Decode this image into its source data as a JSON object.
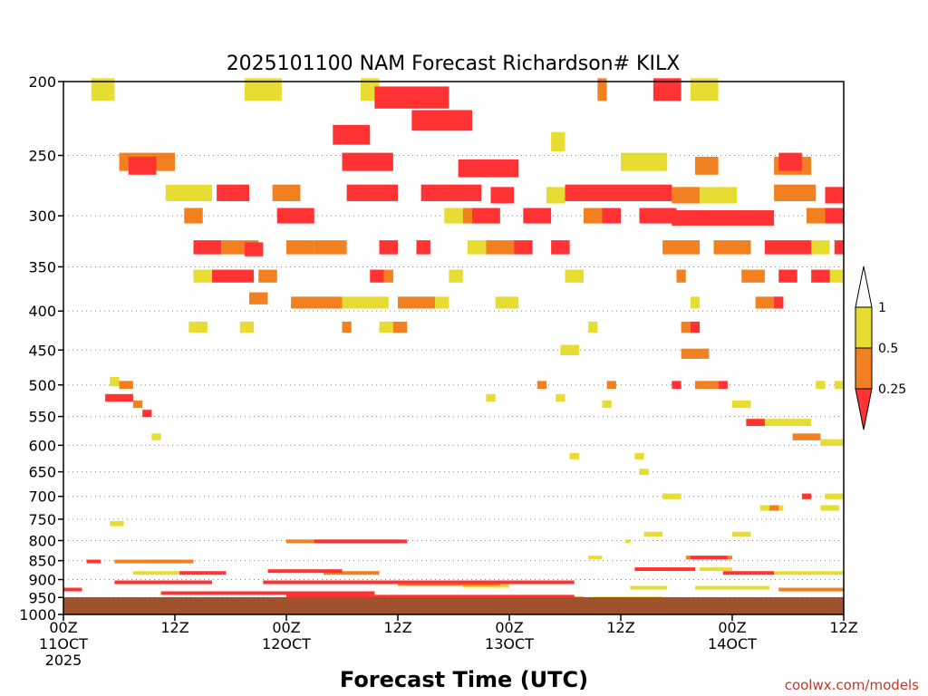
{
  "chart_data": {
    "type": "heatmap",
    "title": "2025101100 NAM Forecast Richardson# KILX",
    "xlabel": "Forecast Time (UTC)",
    "ylabel": "",
    "credit": "coolwx.com/models",
    "y_axis": {
      "scale": "pressure (reversed)",
      "ylim": [
        1000,
        200
      ],
      "ticks": [
        "200",
        "250",
        "300",
        "350",
        "400",
        "450",
        "500",
        "550",
        "600",
        "650",
        "700",
        "750",
        "800",
        "850",
        "900",
        "950",
        "1000"
      ]
    },
    "x_axis": {
      "range_hours": [
        0,
        84
      ],
      "ticks": [
        {
          "hour": 0,
          "line1": "00Z",
          "line2": "11OCT",
          "line3": "2025"
        },
        {
          "hour": 12,
          "line1": "12Z",
          "line2": "",
          "line3": ""
        },
        {
          "hour": 24,
          "line1": "00Z",
          "line2": "12OCT",
          "line3": ""
        },
        {
          "hour": 36,
          "line1": "12Z",
          "line2": "",
          "line3": ""
        },
        {
          "hour": 48,
          "line1": "00Z",
          "line2": "13OCT",
          "line3": ""
        },
        {
          "hour": 60,
          "line1": "12Z",
          "line2": "",
          "line3": ""
        },
        {
          "hour": 72,
          "line1": "00Z",
          "line2": "14OCT",
          "line3": ""
        },
        {
          "hour": 84,
          "line1": "12Z",
          "line2": "",
          "line3": ""
        }
      ]
    },
    "grid": "dotted horizontal lines at pressure ticks",
    "ground_color": "#a0522d",
    "colorbar": {
      "levels": [
        "0.25",
        "0.5",
        "1"
      ],
      "colors": {
        "lt_025": "#ff3333",
        "025_05": "#f08020",
        "05_1": "#e6dc32"
      }
    },
    "bands": [
      {
        "bin": "red",
        "p": 210,
        "h0": 33.5,
        "h1": 41.5
      },
      {
        "bin": "red",
        "p": 225,
        "h0": 37.5,
        "h1": 44.0
      },
      {
        "bin": "red",
        "p": 235,
        "h0": 29.0,
        "h1": 33.0
      },
      {
        "bin": "yellow",
        "p": 205,
        "h0": 3.0,
        "h1": 5.5
      },
      {
        "bin": "yellow",
        "p": 205,
        "h0": 19.5,
        "h1": 23.5
      },
      {
        "bin": "yellow",
        "p": 205,
        "h0": 32.0,
        "h1": 34.0
      },
      {
        "bin": "orange",
        "p": 205,
        "h0": 57.5,
        "h1": 58.5
      },
      {
        "bin": "red",
        "p": 205,
        "h0": 63.5,
        "h1": 66.5
      },
      {
        "bin": "yellow",
        "p": 205,
        "h0": 67.5,
        "h1": 70.5
      },
      {
        "bin": "yellow",
        "p": 240,
        "h0": 52.5,
        "h1": 54.0
      },
      {
        "bin": "orange",
        "p": 255,
        "h0": 6.0,
        "h1": 12.0
      },
      {
        "bin": "red",
        "p": 258,
        "h0": 7.0,
        "h1": 10.0
      },
      {
        "bin": "red",
        "p": 255,
        "h0": 30.0,
        "h1": 35.5
      },
      {
        "bin": "red",
        "p": 260,
        "h0": 42.5,
        "h1": 49.0
      },
      {
        "bin": "yellow",
        "p": 255,
        "h0": 60.0,
        "h1": 65.0
      },
      {
        "bin": "orange",
        "p": 258,
        "h0": 68.0,
        "h1": 70.5
      },
      {
        "bin": "orange",
        "p": 258,
        "h0": 76.5,
        "h1": 80.5
      },
      {
        "bin": "red",
        "p": 255,
        "h0": 77.0,
        "h1": 79.5
      },
      {
        "bin": "yellow",
        "p": 280,
        "h0": 11.0,
        "h1": 16.0
      },
      {
        "bin": "red",
        "p": 280,
        "h0": 16.5,
        "h1": 20.0
      },
      {
        "bin": "orange",
        "p": 280,
        "h0": 22.5,
        "h1": 25.5
      },
      {
        "bin": "red",
        "p": 280,
        "h0": 30.5,
        "h1": 36.0
      },
      {
        "bin": "red",
        "p": 280,
        "h0": 38.5,
        "h1": 45.0
      },
      {
        "bin": "red",
        "p": 282,
        "h0": 46.0,
        "h1": 48.5
      },
      {
        "bin": "yellow",
        "p": 282,
        "h0": 52.0,
        "h1": 54.0
      },
      {
        "bin": "red",
        "p": 280,
        "h0": 54.0,
        "h1": 60.0
      },
      {
        "bin": "red",
        "p": 280,
        "h0": 60.0,
        "h1": 65.5
      },
      {
        "bin": "orange",
        "p": 282,
        "h0": 65.5,
        "h1": 68.5
      },
      {
        "bin": "yellow",
        "p": 282,
        "h0": 68.5,
        "h1": 72.5
      },
      {
        "bin": "orange",
        "p": 280,
        "h0": 76.5,
        "h1": 81.0
      },
      {
        "bin": "red",
        "p": 282,
        "h0": 82.0,
        "h1": 84.0
      },
      {
        "bin": "orange",
        "p": 300,
        "h0": 13.0,
        "h1": 15.0
      },
      {
        "bin": "red",
        "p": 300,
        "h0": 23.0,
        "h1": 27.0
      },
      {
        "bin": "orange",
        "p": 300,
        "h0": 43.0,
        "h1": 47.0
      },
      {
        "bin": "red",
        "p": 300,
        "h0": 44.0,
        "h1": 47.0
      },
      {
        "bin": "red",
        "p": 300,
        "h0": 49.5,
        "h1": 52.5
      },
      {
        "bin": "orange",
        "p": 300,
        "h0": 56.0,
        "h1": 58.0
      },
      {
        "bin": "red",
        "p": 300,
        "h0": 58.0,
        "h1": 60.0
      },
      {
        "bin": "red",
        "p": 300,
        "h0": 62.0,
        "h1": 66.0
      },
      {
        "bin": "red",
        "p": 302,
        "h0": 65.5,
        "h1": 76.5
      },
      {
        "bin": "orange",
        "p": 300,
        "h0": 80.0,
        "h1": 82.0
      },
      {
        "bin": "red",
        "p": 300,
        "h0": 82.0,
        "h1": 84.0
      },
      {
        "bin": "yellow",
        "p": 300,
        "h0": 41.0,
        "h1": 43.0
      },
      {
        "bin": "red",
        "p": 330,
        "h0": 14.0,
        "h1": 17.0
      },
      {
        "bin": "orange",
        "p": 330,
        "h0": 17.0,
        "h1": 21.0
      },
      {
        "bin": "red",
        "p": 332,
        "h0": 19.5,
        "h1": 21.5
      },
      {
        "bin": "orange",
        "p": 330,
        "h0": 24.0,
        "h1": 27.0
      },
      {
        "bin": "orange",
        "p": 330,
        "h0": 27.0,
        "h1": 30.5
      },
      {
        "bin": "red",
        "p": 330,
        "h0": 34.0,
        "h1": 36.0
      },
      {
        "bin": "red",
        "p": 330,
        "h0": 38.0,
        "h1": 39.5
      },
      {
        "bin": "orange",
        "p": 330,
        "h0": 45.5,
        "h1": 48.5
      },
      {
        "bin": "red",
        "p": 330,
        "h0": 48.5,
        "h1": 50.5
      },
      {
        "bin": "red",
        "p": 330,
        "h0": 52.5,
        "h1": 54.5
      },
      {
        "bin": "yellow",
        "p": 330,
        "h0": 43.5,
        "h1": 45.5
      },
      {
        "bin": "orange",
        "p": 330,
        "h0": 64.5,
        "h1": 68.5
      },
      {
        "bin": "orange",
        "p": 330,
        "h0": 70.0,
        "h1": 74.0
      },
      {
        "bin": "red",
        "p": 330,
        "h0": 75.5,
        "h1": 80.5
      },
      {
        "bin": "red",
        "p": 330,
        "h0": 83.0,
        "h1": 84.0
      },
      {
        "bin": "yellow",
        "p": 330,
        "h0": 80.5,
        "h1": 82.5
      },
      {
        "bin": "red",
        "p": 360,
        "h0": 16.0,
        "h1": 20.5
      },
      {
        "bin": "orange",
        "p": 360,
        "h0": 21.0,
        "h1": 23.0
      },
      {
        "bin": "yellow",
        "p": 360,
        "h0": 14.0,
        "h1": 16.0
      },
      {
        "bin": "red",
        "p": 360,
        "h0": 33.0,
        "h1": 34.5
      },
      {
        "bin": "orange",
        "p": 360,
        "h0": 34.5,
        "h1": 35.5
      },
      {
        "bin": "yellow",
        "p": 360,
        "h0": 41.5,
        "h1": 43.0
      },
      {
        "bin": "yellow",
        "p": 360,
        "h0": 54.0,
        "h1": 56.0
      },
      {
        "bin": "orange",
        "p": 360,
        "h0": 66.0,
        "h1": 67.0
      },
      {
        "bin": "orange",
        "p": 360,
        "h0": 73.0,
        "h1": 75.5
      },
      {
        "bin": "red",
        "p": 360,
        "h0": 77.0,
        "h1": 79.0
      },
      {
        "bin": "red",
        "p": 360,
        "h0": 80.5,
        "h1": 82.5
      },
      {
        "bin": "yellow",
        "p": 360,
        "h0": 82.5,
        "h1": 84.0
      },
      {
        "bin": "orange",
        "p": 385,
        "h0": 20.0,
        "h1": 22.0
      },
      {
        "bin": "orange",
        "p": 390,
        "h0": 24.5,
        "h1": 30.0
      },
      {
        "bin": "yellow",
        "p": 390,
        "h0": 30.0,
        "h1": 35.0
      },
      {
        "bin": "orange",
        "p": 390,
        "h0": 36.0,
        "h1": 40.0
      },
      {
        "bin": "yellow",
        "p": 390,
        "h0": 40.0,
        "h1": 41.5
      },
      {
        "bin": "yellow",
        "p": 390,
        "h0": 46.5,
        "h1": 49.0
      },
      {
        "bin": "orange",
        "p": 390,
        "h0": 74.5,
        "h1": 77.5
      },
      {
        "bin": "red",
        "p": 390,
        "h0": 76.5,
        "h1": 77.5
      },
      {
        "bin": "yellow",
        "p": 390,
        "h0": 67.5,
        "h1": 68.5
      },
      {
        "bin": "yellow",
        "p": 420,
        "h0": 13.5,
        "h1": 15.5
      },
      {
        "bin": "yellow",
        "p": 420,
        "h0": 19.0,
        "h1": 20.5
      },
      {
        "bin": "orange",
        "p": 420,
        "h0": 30.0,
        "h1": 31.0
      },
      {
        "bin": "yellow",
        "p": 420,
        "h0": 34.0,
        "h1": 36.0
      },
      {
        "bin": "orange",
        "p": 420,
        "h0": 35.5,
        "h1": 37.0
      },
      {
        "bin": "red",
        "p": 420,
        "h0": 67.5,
        "h1": 68.5
      },
      {
        "bin": "orange",
        "p": 420,
        "h0": 66.5,
        "h1": 67.5
      },
      {
        "bin": "yellow",
        "p": 420,
        "h0": 56.5,
        "h1": 57.5
      },
      {
        "bin": "orange",
        "p": 455,
        "h0": 66.5,
        "h1": 69.5
      },
      {
        "bin": "yellow",
        "p": 450,
        "h0": 53.5,
        "h1": 55.5
      },
      {
        "bin": "orange",
        "p": 500,
        "h0": 6.0,
        "h1": 7.5
      },
      {
        "bin": "yellow",
        "p": 495,
        "h0": 5.0,
        "h1": 6.0
      },
      {
        "bin": "red",
        "p": 520,
        "h0": 4.5,
        "h1": 7.5
      },
      {
        "bin": "orange",
        "p": 530,
        "h0": 7.5,
        "h1": 8.5
      },
      {
        "bin": "red",
        "p": 545,
        "h0": 8.5,
        "h1": 9.5
      },
      {
        "bin": "yellow",
        "p": 585,
        "h0": 9.5,
        "h1": 10.5
      },
      {
        "bin": "orange",
        "p": 500,
        "h0": 51.0,
        "h1": 52.0
      },
      {
        "bin": "orange",
        "p": 500,
        "h0": 58.5,
        "h1": 59.5
      },
      {
        "bin": "red",
        "p": 500,
        "h0": 65.5,
        "h1": 66.5
      },
      {
        "bin": "orange",
        "p": 500,
        "h0": 68.0,
        "h1": 70.5
      },
      {
        "bin": "red",
        "p": 500,
        "h0": 70.5,
        "h1": 71.5
      },
      {
        "bin": "yellow",
        "p": 500,
        "h0": 81.0,
        "h1": 82.0
      },
      {
        "bin": "yellow",
        "p": 500,
        "h0": 83.0,
        "h1": 84.0
      },
      {
        "bin": "yellow",
        "p": 520,
        "h0": 45.5,
        "h1": 46.5
      },
      {
        "bin": "yellow",
        "p": 530,
        "h0": 72.0,
        "h1": 74.0
      },
      {
        "bin": "yellow",
        "p": 560,
        "h0": 74.0,
        "h1": 80.5
      },
      {
        "bin": "red",
        "p": 560,
        "h0": 73.5,
        "h1": 75.5
      },
      {
        "bin": "orange",
        "p": 585,
        "h0": 78.5,
        "h1": 81.5
      },
      {
        "bin": "yellow",
        "p": 595,
        "h0": 81.5,
        "h1": 84.0
      },
      {
        "bin": "yellow",
        "p": 520,
        "h0": 53.0,
        "h1": 54.0
      },
      {
        "bin": "yellow",
        "p": 530,
        "h0": 58.0,
        "h1": 59.0
      },
      {
        "bin": "yellow",
        "p": 620,
        "h0": 54.5,
        "h1": 55.5
      },
      {
        "bin": "yellow",
        "p": 620,
        "h0": 61.5,
        "h1": 62.5
      },
      {
        "bin": "yellow",
        "p": 650,
        "h0": 62.0,
        "h1": 63.0
      },
      {
        "bin": "yellow",
        "p": 700,
        "h0": 64.5,
        "h1": 66.5
      },
      {
        "bin": "yellow",
        "p": 700,
        "h0": 82.0,
        "h1": 84.0
      },
      {
        "bin": "red",
        "p": 700,
        "h0": 79.5,
        "h1": 80.5
      },
      {
        "bin": "yellow",
        "p": 725,
        "h0": 75.0,
        "h1": 77.5
      },
      {
        "bin": "orange",
        "p": 725,
        "h0": 76.0,
        "h1": 77.0
      },
      {
        "bin": "yellow",
        "p": 725,
        "h0": 81.5,
        "h1": 83.5
      },
      {
        "bin": "yellow",
        "p": 760,
        "h0": 5.0,
        "h1": 6.5
      },
      {
        "bin": "yellow",
        "p": 785,
        "h0": 62.5,
        "h1": 64.5
      },
      {
        "bin": "yellow",
        "p": 785,
        "h0": 72.0,
        "h1": 74.0
      },
      {
        "bin": "orange",
        "p": 800,
        "h0": 24.0,
        "h1": 36.5
      },
      {
        "bin": "red",
        "p": 800,
        "h0": 27.0,
        "h1": 37.0
      },
      {
        "bin": "yellow",
        "p": 800,
        "h0": 60.5,
        "h1": 61.0
      },
      {
        "bin": "orange",
        "p": 840,
        "h0": 67.0,
        "h1": 72.0
      },
      {
        "bin": "red",
        "p": 840,
        "h0": 67.5,
        "h1": 71.5
      },
      {
        "bin": "yellow",
        "p": 840,
        "h0": 56.5,
        "h1": 58.0
      },
      {
        "bin": "orange",
        "p": 850,
        "h0": 5.5,
        "h1": 14.0
      },
      {
        "bin": "yellow",
        "p": 850,
        "h0": 9.0,
        "h1": 13.0
      },
      {
        "bin": "red",
        "p": 850,
        "h0": 2.5,
        "h1": 4.0
      },
      {
        "bin": "red",
        "p": 875,
        "h0": 22.0,
        "h1": 30.0
      },
      {
        "bin": "orange",
        "p": 880,
        "h0": 28.0,
        "h1": 34.0
      },
      {
        "bin": "yellow",
        "p": 880,
        "h0": 7.5,
        "h1": 12.5
      },
      {
        "bin": "red",
        "p": 880,
        "h0": 12.5,
        "h1": 17.5
      },
      {
        "bin": "red",
        "p": 870,
        "h0": 61.5,
        "h1": 68.0
      },
      {
        "bin": "yellow",
        "p": 870,
        "h0": 68.5,
        "h1": 72.0
      },
      {
        "bin": "red",
        "p": 880,
        "h0": 71.0,
        "h1": 76.5
      },
      {
        "bin": "yellow",
        "p": 880,
        "h0": 76.5,
        "h1": 84.0
      },
      {
        "bin": "red",
        "p": 905,
        "h0": 5.5,
        "h1": 16.0
      },
      {
        "bin": "red",
        "p": 905,
        "h0": 21.5,
        "h1": 46.0
      },
      {
        "bin": "red",
        "p": 905,
        "h0": 44.0,
        "h1": 55.0
      },
      {
        "bin": "orange",
        "p": 910,
        "h0": 36.0,
        "h1": 47.0
      },
      {
        "bin": "yellow",
        "p": 915,
        "h0": 43.0,
        "h1": 48.0
      },
      {
        "bin": "yellow",
        "p": 920,
        "h0": 61.0,
        "h1": 65.0
      },
      {
        "bin": "yellow",
        "p": 920,
        "h0": 68.0,
        "h1": 76.0
      },
      {
        "bin": "orange",
        "p": 925,
        "h0": 77.0,
        "h1": 84.0
      },
      {
        "bin": "red",
        "p": 925,
        "h0": 0.0,
        "h1": 2.0
      },
      {
        "bin": "red",
        "p": 935,
        "h0": 10.5,
        "h1": 33.5
      },
      {
        "bin": "red",
        "p": 945,
        "h0": 24.0,
        "h1": 35.0
      },
      {
        "bin": "red",
        "p": 945,
        "h0": 35.0,
        "h1": 55.0
      },
      {
        "bin": "orange",
        "p": 950,
        "h0": 38.0,
        "h1": 56.0
      },
      {
        "bin": "yellow",
        "p": 950,
        "h0": 57.0,
        "h1": 64.5
      },
      {
        "bin": "yellow",
        "p": 960,
        "h0": 65.0,
        "h1": 80.0
      },
      {
        "bin": "red",
        "p": 960,
        "h0": 74.0,
        "h1": 84.0
      },
      {
        "bin": "orange",
        "p": 955,
        "h0": 80.0,
        "h1": 84.0
      },
      {
        "bin": "red",
        "p": 965,
        "h0": 0.0,
        "h1": 32.0
      },
      {
        "bin": "red",
        "p": 975,
        "h0": 0.0,
        "h1": 56.0
      },
      {
        "bin": "orange",
        "p": 975,
        "h0": 44.0,
        "h1": 56.0
      },
      {
        "bin": "yellow",
        "p": 975,
        "h0": 56.0,
        "h1": 63.0
      },
      {
        "bin": "red",
        "p": 985,
        "h0": 0.0,
        "h1": 84.0
      },
      {
        "bin": "orange",
        "p": 990,
        "h0": 60.0,
        "h1": 72.0
      }
    ]
  }
}
